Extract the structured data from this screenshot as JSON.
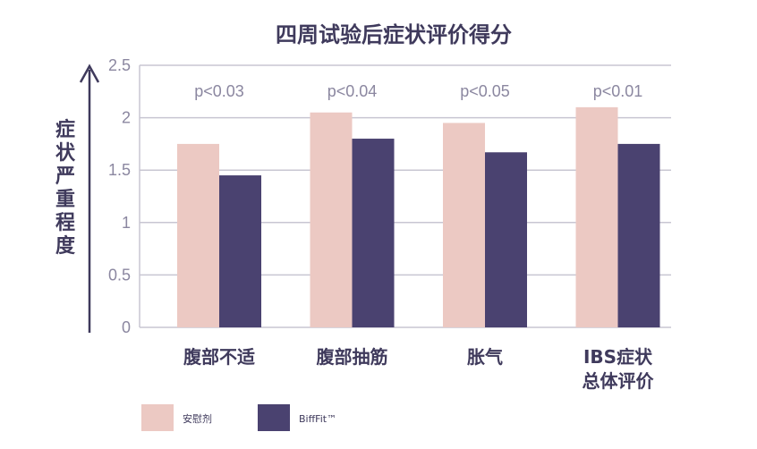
{
  "chart_data": {
    "type": "bar",
    "title": "四周试验后症状评价得分",
    "ylabel": "症状严重程度",
    "xlabel": "",
    "categories": [
      "腹部不适",
      "腹部抽筋",
      "胀气",
      "IBS症状\n总体评价"
    ],
    "series": [
      {
        "name": "安慰剂",
        "values": [
          1.75,
          2.05,
          1.95,
          2.1
        ]
      },
      {
        "name": "BiffFit™",
        "values": [
          1.45,
          1.8,
          1.67,
          1.75
        ]
      }
    ],
    "annotations": [
      "p<0.03",
      "p<0.04",
      "p<0.05",
      "p<0.01"
    ],
    "ylim": [
      0,
      2.5
    ],
    "yticks": [
      "0",
      "0.5",
      "1",
      "1.5",
      "2",
      "2.5"
    ],
    "grid": true,
    "legend_position": "bottom-left",
    "colors": {
      "placebo": "#ecc9c3",
      "biffit": "#4a4270",
      "text": "#3f3a5c",
      "grid": "#c8c6d2",
      "tick": "#8b87a0"
    }
  }
}
